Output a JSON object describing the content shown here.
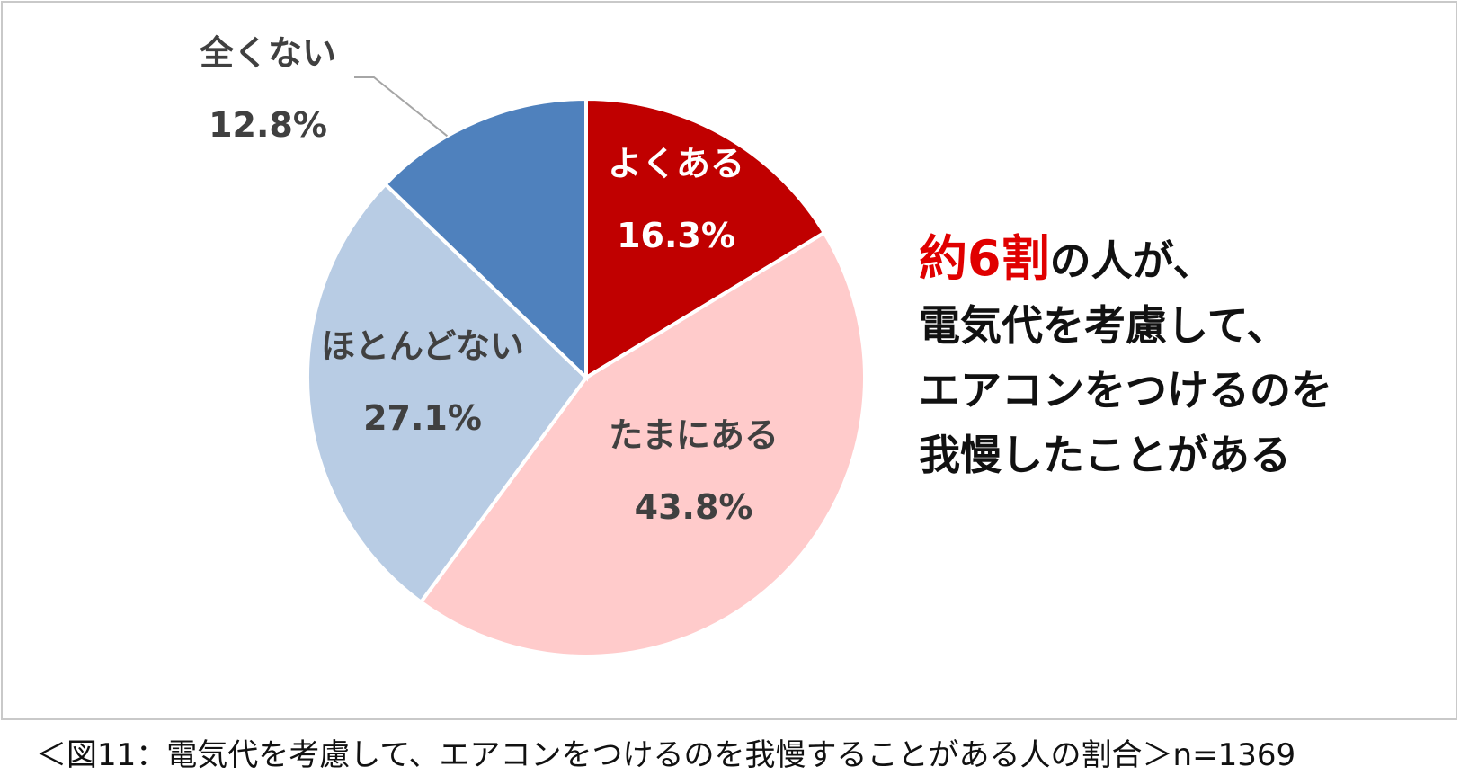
{
  "chart_data": {
    "type": "pie",
    "slices": [
      {
        "label": "よくある",
        "value": 16.3,
        "display": "16.3%",
        "color": "#c00000",
        "text_color": "#ffffff"
      },
      {
        "label": "たまにある",
        "value": 43.8,
        "display": "43.8%",
        "color": "#ffcbcb",
        "text_color": "#404040"
      },
      {
        "label": "ほとんどない",
        "value": 27.1,
        "display": "27.1%",
        "color": "#b8cce4",
        "text_color": "#404040"
      },
      {
        "label": "全くない",
        "value": 12.8,
        "display": "12.8%",
        "color": "#4f81bd",
        "text_color": "#404040"
      }
    ],
    "start_angle": "12 o'clock",
    "direction": "clockwise"
  },
  "callout": {
    "highlight": "約6割",
    "line1_rest": "の人が、",
    "line2": "電気代を考慮して、",
    "line3": "エアコンをつけるのを",
    "line4": "我慢したことがある",
    "highlight_color": "#e00000"
  },
  "caption": "＜図11：電気代を考慮して、エアコンをつけるのを我慢することがある人の割合＞n=1369"
}
